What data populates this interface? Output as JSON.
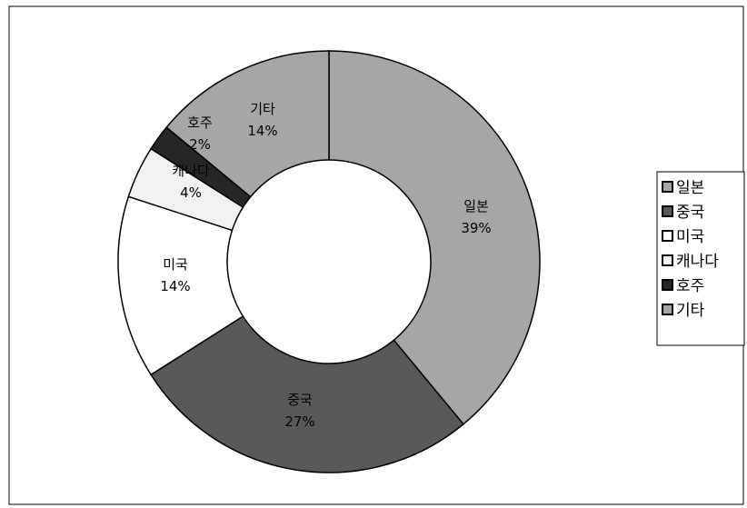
{
  "chart_data": {
    "type": "pie",
    "variant": "donut",
    "title": "",
    "legend_position": "right",
    "slices": [
      {
        "label": "일본",
        "value": 39,
        "pct_label": "39%",
        "color": "#a6a6a6"
      },
      {
        "label": "중국",
        "value": 27,
        "pct_label": "27%",
        "color": "#595959"
      },
      {
        "label": "미국",
        "value": 14,
        "pct_label": "14%",
        "color": "#ffffff"
      },
      {
        "label": "캐나다",
        "value": 4,
        "pct_label": "4%",
        "color": "#f2f2f2"
      },
      {
        "label": "호주",
        "value": 2,
        "pct_label": "2%",
        "color": "#262626"
      },
      {
        "label": "기타",
        "value": 14,
        "pct_label": "14%",
        "color": "#a6a6a6"
      }
    ]
  }
}
